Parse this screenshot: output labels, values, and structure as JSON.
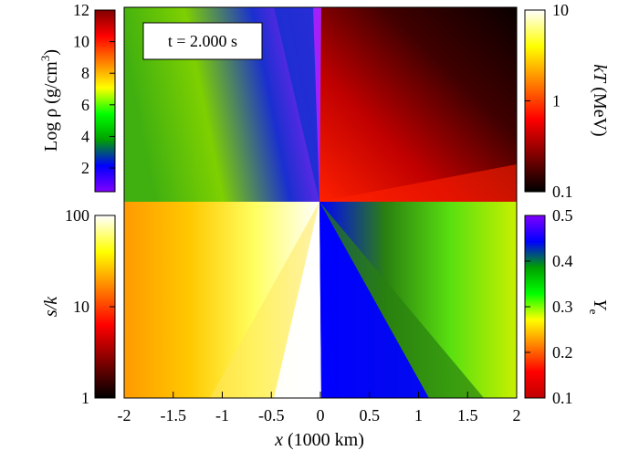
{
  "chart_data": {
    "type": "heatmap",
    "time_label": "t = 2.000 s",
    "xlabel_var": "x",
    "xlabel_units": " (1000 km)",
    "x_ticks": [
      "-2",
      "-1.5",
      "-1",
      "-0.5",
      "0",
      "0.5",
      "1",
      "1.5",
      "2"
    ],
    "x_tick_values": [
      -2,
      -1.5,
      -1,
      -0.5,
      0,
      0.5,
      1,
      1.5,
      2
    ],
    "xlim": [
      -2,
      2
    ],
    "colorbars": [
      {
        "id": "density",
        "quadrant": "top-left",
        "side": "left",
        "label_main": "Log ρ (g/cm",
        "label_sup": "3",
        "label_end": ")",
        "scale": "linear",
        "range": [
          0.5,
          12
        ],
        "ticks": [
          "2",
          "4",
          "6",
          "8",
          "10",
          "12"
        ],
        "tick_values": [
          2,
          4,
          6,
          8,
          10,
          12
        ],
        "colors": [
          "#8000ff",
          "#0000ff",
          "#00a000",
          "#00ff00",
          "#ffff00",
          "#ff8000",
          "#ff0000",
          "#800000"
        ]
      },
      {
        "id": "temperature",
        "quadrant": "top-right",
        "side": "right",
        "label_var": "kT",
        "label_units": " (MeV)",
        "scale": "log",
        "range": [
          0.1,
          10
        ],
        "ticks": [
          "0.1",
          "1",
          "10"
        ],
        "tick_values": [
          0.1,
          1,
          10
        ],
        "colors": [
          "#000000",
          "#800000",
          "#ff0000",
          "#ff8000",
          "#ffff00",
          "#ffffff"
        ]
      },
      {
        "id": "entropy",
        "quadrant": "bottom-left",
        "side": "left",
        "label_var": "s/k",
        "scale": "log",
        "range": [
          1,
          100
        ],
        "ticks": [
          "1",
          "10",
          "100"
        ],
        "tick_values": [
          1,
          10,
          100
        ],
        "colors": [
          "#000000",
          "#800000",
          "#ff0000",
          "#ff8000",
          "#ffff00",
          "#ffffff"
        ]
      },
      {
        "id": "electron_fraction",
        "quadrant": "bottom-right",
        "side": "right",
        "label_var": "Y",
        "label_sub": "e",
        "scale": "linear",
        "range": [
          0.1,
          0.5
        ],
        "ticks": [
          "0.1",
          "0.2",
          "0.3",
          "0.4",
          "0.5"
        ],
        "tick_values": [
          0.1,
          0.2,
          0.3,
          0.4,
          0.5
        ],
        "colors": [
          "#c00000",
          "#ff0000",
          "#ff8000",
          "#ffff00",
          "#00ff00",
          "#00a000",
          "#0000ff",
          "#8000ff"
        ]
      }
    ],
    "quadrant_colors": {
      "top_left": [
        "#40b010",
        "#7ed000",
        "#1a2fd0",
        "#b020ff"
      ],
      "top_right": [
        "#ff2000",
        "#c00000",
        "#400000",
        "#0a0000"
      ],
      "bottom_left": [
        "#ff9a00",
        "#ffc800",
        "#ffff60",
        "#ffffff"
      ],
      "bottom_right": [
        "#0000ff",
        "#2a8010",
        "#5ae010",
        "#c8f000"
      ]
    }
  }
}
